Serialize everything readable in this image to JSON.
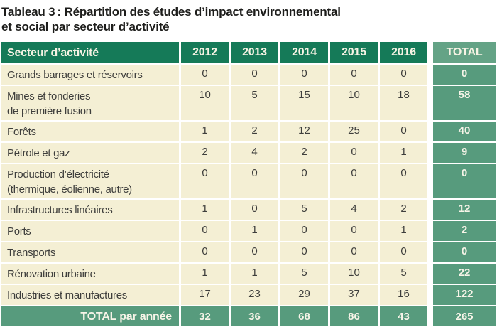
{
  "title": {
    "line1": "Tableau 3 : Répartition des études d’impact environnemental",
    "line2": "et social par secteur d’activité"
  },
  "colors": {
    "header_green": "#157a58",
    "total_header_green": "#64a386",
    "total_cell_green": "#579b7d",
    "body_beige": "#f4efd4",
    "header_text": "#f6f3e4",
    "body_text": "#3e3e3c"
  },
  "table": {
    "header": {
      "sector": "Secteur d’activité",
      "years": [
        "2012",
        "2013",
        "2014",
        "2015",
        "2016"
      ],
      "total": "TOTAL"
    },
    "rows": [
      {
        "label": "Grands barrages et réservoirs",
        "label2": "",
        "values": [
          "0",
          "0",
          "0",
          "0",
          "0"
        ],
        "total": "0"
      },
      {
        "label": "Mines et fonderies",
        "label2": "de première fusion",
        "values": [
          "10",
          "5",
          "15",
          "10",
          "18"
        ],
        "total": "58"
      },
      {
        "label": "Forêts",
        "label2": "",
        "values": [
          "1",
          "2",
          "12",
          "25",
          "0"
        ],
        "total": "40"
      },
      {
        "label": "Pétrole et gaz",
        "label2": "",
        "values": [
          "2",
          "4",
          "2",
          "0",
          "1"
        ],
        "total": "9"
      },
      {
        "label": "Production d’électricité",
        "label2": "(thermique, éolienne, autre)",
        "values": [
          "0",
          "0",
          "0",
          "0",
          "0"
        ],
        "total": "0"
      },
      {
        "label": "Infrastructures linéaires",
        "label2": "",
        "values": [
          "1",
          "0",
          "5",
          "4",
          "2"
        ],
        "total": "12"
      },
      {
        "label": "Ports",
        "label2": "",
        "values": [
          "0",
          "1",
          "0",
          "0",
          "1"
        ],
        "total": "2"
      },
      {
        "label": "Transports",
        "label2": "",
        "values": [
          "0",
          "0",
          "0",
          "0",
          "0"
        ],
        "total": "0"
      },
      {
        "label": "Rénovation urbaine",
        "label2": "",
        "values": [
          "1",
          "1",
          "5",
          "10",
          "5"
        ],
        "total": "22"
      },
      {
        "label": "Industries et manufactures",
        "label2": "",
        "values": [
          "17",
          "23",
          "29",
          "37",
          "16"
        ],
        "total": "122"
      }
    ],
    "footer": {
      "label": "TOTAL par année",
      "values": [
        "32",
        "36",
        "68",
        "86",
        "43"
      ],
      "total": "265"
    }
  }
}
